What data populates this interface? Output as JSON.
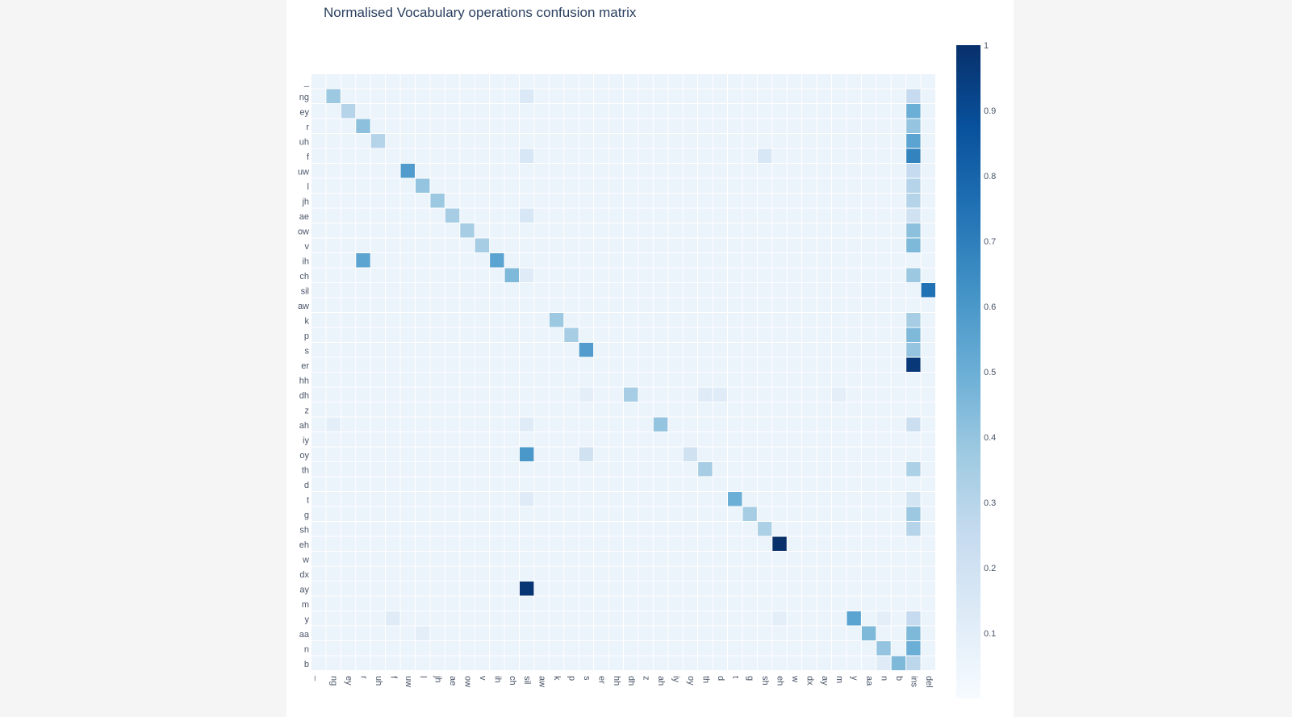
{
  "chart_data": {
    "type": "heatmap",
    "title": "Normalised Vocabulary operations confusion matrix",
    "xlabel": "",
    "ylabel": "",
    "y_categories": [
      "_",
      "ng",
      "ey",
      "r",
      "uh",
      "f",
      "uw",
      "l",
      "jh",
      "ae",
      "ow",
      "v",
      "ih",
      "ch",
      "sil",
      "aw",
      "k",
      "p",
      "s",
      "er",
      "hh",
      "dh",
      "z",
      "ah",
      "iy",
      "oy",
      "th",
      "d",
      "t",
      "g",
      "sh",
      "eh",
      "w",
      "dx",
      "ay",
      "m",
      "y",
      "aa",
      "n",
      "b"
    ],
    "x_categories": [
      "_",
      "ng",
      "ey",
      "r",
      "uh",
      "f",
      "uw",
      "l",
      "jh",
      "ae",
      "ow",
      "v",
      "ih",
      "ch",
      "sil",
      "aw",
      "k",
      "p",
      "s",
      "er",
      "hh",
      "dh",
      "z",
      "ah",
      "iy",
      "oy",
      "th",
      "d",
      "t",
      "g",
      "sh",
      "eh",
      "w",
      "dx",
      "ay",
      "m",
      "y",
      "aa",
      "n",
      "b",
      "ins",
      "del"
    ],
    "zlim": [
      0,
      1
    ],
    "colorscale": "Blues",
    "colorbar_ticks": [
      1,
      0.9,
      0.8,
      0.7,
      0.6,
      0.5,
      0.4,
      0.3,
      0.2,
      0.1
    ],
    "background_value": 0.06,
    "cells": [
      {
        "y": "ng",
        "x": "ng",
        "v": 0.38
      },
      {
        "y": "ey",
        "x": "ey",
        "v": 0.3
      },
      {
        "y": "r",
        "x": "r",
        "v": 0.42
      },
      {
        "y": "uh",
        "x": "uh",
        "v": 0.3
      },
      {
        "y": "uw",
        "x": "uw",
        "v": 0.58
      },
      {
        "y": "l",
        "x": "l",
        "v": 0.4
      },
      {
        "y": "jh",
        "x": "jh",
        "v": 0.38
      },
      {
        "y": "ae",
        "x": "ae",
        "v": 0.35
      },
      {
        "y": "ow",
        "x": "ow",
        "v": 0.35
      },
      {
        "y": "v",
        "x": "v",
        "v": 0.35
      },
      {
        "y": "ih",
        "x": "r",
        "v": 0.55
      },
      {
        "y": "ih",
        "x": "ih",
        "v": 0.55
      },
      {
        "y": "ch",
        "x": "ch",
        "v": 0.45
      },
      {
        "y": "sil",
        "x": "del",
        "v": 0.75
      },
      {
        "y": "k",
        "x": "k",
        "v": 0.38
      },
      {
        "y": "p",
        "x": "p",
        "v": 0.35
      },
      {
        "y": "s",
        "x": "s",
        "v": 0.58
      },
      {
        "y": "er",
        "x": "ins",
        "v": 0.97
      },
      {
        "y": "dh",
        "x": "dh",
        "v": 0.35
      },
      {
        "y": "ah",
        "x": "ah",
        "v": 0.4
      },
      {
        "y": "oy",
        "x": "sil",
        "v": 0.6
      },
      {
        "y": "oy",
        "x": "s",
        "v": 0.2
      },
      {
        "y": "oy",
        "x": "oy",
        "v": 0.2
      },
      {
        "y": "th",
        "x": "th",
        "v": 0.35
      },
      {
        "y": "t",
        "x": "t",
        "v": 0.5
      },
      {
        "y": "g",
        "x": "g",
        "v": 0.35
      },
      {
        "y": "sh",
        "x": "sh",
        "v": 0.33
      },
      {
        "y": "eh",
        "x": "eh",
        "v": 1.0
      },
      {
        "y": "ay",
        "x": "sil",
        "v": 0.98
      },
      {
        "y": "y",
        "x": "y",
        "v": 0.55
      },
      {
        "y": "aa",
        "x": "aa",
        "v": 0.45
      },
      {
        "y": "n",
        "x": "n",
        "v": 0.4
      },
      {
        "y": "b",
        "x": "b",
        "v": 0.45
      },
      {
        "y": "ng",
        "x": "ins",
        "v": 0.25
      },
      {
        "y": "ey",
        "x": "ins",
        "v": 0.5
      },
      {
        "y": "r",
        "x": "ins",
        "v": 0.4
      },
      {
        "y": "uh",
        "x": "ins",
        "v": 0.55
      },
      {
        "y": "f",
        "x": "ins",
        "v": 0.68
      },
      {
        "y": "uw",
        "x": "ins",
        "v": 0.25
      },
      {
        "y": "l",
        "x": "ins",
        "v": 0.3
      },
      {
        "y": "jh",
        "x": "ins",
        "v": 0.3
      },
      {
        "y": "ae",
        "x": "ins",
        "v": 0.2
      },
      {
        "y": "ow",
        "x": "ins",
        "v": 0.42
      },
      {
        "y": "v",
        "x": "ins",
        "v": 0.45
      },
      {
        "y": "ch",
        "x": "ins",
        "v": 0.38
      },
      {
        "y": "k",
        "x": "ins",
        "v": 0.35
      },
      {
        "y": "p",
        "x": "ins",
        "v": 0.45
      },
      {
        "y": "s",
        "x": "ins",
        "v": 0.4
      },
      {
        "y": "ah",
        "x": "ins",
        "v": 0.22
      },
      {
        "y": "th",
        "x": "ins",
        "v": 0.33
      },
      {
        "y": "t",
        "x": "ins",
        "v": 0.18
      },
      {
        "y": "g",
        "x": "ins",
        "v": 0.38
      },
      {
        "y": "sh",
        "x": "ins",
        "v": 0.3
      },
      {
        "y": "y",
        "x": "ins",
        "v": 0.25
      },
      {
        "y": "aa",
        "x": "ins",
        "v": 0.45
      },
      {
        "y": "n",
        "x": "ins",
        "v": 0.5
      },
      {
        "y": "b",
        "x": "ins",
        "v": 0.28
      },
      {
        "y": "f",
        "x": "sil",
        "v": 0.16
      },
      {
        "y": "f",
        "x": "sh",
        "v": 0.16
      },
      {
        "y": "ae",
        "x": "sil",
        "v": 0.16
      },
      {
        "y": "ng",
        "x": "sil",
        "v": 0.14
      },
      {
        "y": "ch",
        "x": "sil",
        "v": 0.12
      },
      {
        "y": "t",
        "x": "sil",
        "v": 0.12
      },
      {
        "y": "ah",
        "x": "sil",
        "v": 0.12
      },
      {
        "y": "dh",
        "x": "th",
        "v": 0.12
      },
      {
        "y": "dh",
        "x": "d",
        "v": 0.12
      },
      {
        "y": "dh",
        "x": "s",
        "v": 0.1
      },
      {
        "y": "dh",
        "x": "m",
        "v": 0.1
      },
      {
        "y": "ah",
        "x": "ng",
        "v": 0.1
      },
      {
        "y": "y",
        "x": "f",
        "v": 0.12
      },
      {
        "y": "y",
        "x": "eh",
        "v": 0.1
      },
      {
        "y": "y",
        "x": "n",
        "v": 0.1
      },
      {
        "y": "aa",
        "x": "l",
        "v": 0.1
      },
      {
        "y": "b",
        "x": "n",
        "v": 0.12
      }
    ]
  }
}
